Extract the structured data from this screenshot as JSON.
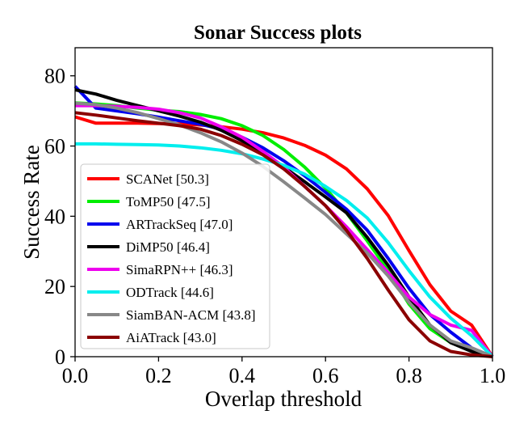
{
  "chart_data": {
    "type": "line",
    "title": "Sonar Success plots",
    "xlabel": "Overlap threshold",
    "ylabel": "Success Rate",
    "xlim": [
      0.0,
      1.0
    ],
    "ylim": [
      0,
      88
    ],
    "x_ticks": [
      0.0,
      0.2,
      0.4,
      0.6,
      0.8,
      1.0
    ],
    "x_tick_labels": [
      "0.0",
      "0.2",
      "0.4",
      "0.6",
      "0.8",
      "1.0"
    ],
    "y_ticks": [
      0,
      20,
      40,
      60,
      80
    ],
    "y_tick_labels": [
      "0",
      "20",
      "40",
      "60",
      "80"
    ],
    "grid": false,
    "legend_position": "lower-left",
    "x": [
      0.0,
      0.05,
      0.1,
      0.15,
      0.2,
      0.25,
      0.3,
      0.35,
      0.4,
      0.45,
      0.5,
      0.55,
      0.6,
      0.65,
      0.7,
      0.75,
      0.8,
      0.85,
      0.9,
      0.95,
      1.0
    ],
    "series": [
      {
        "name": "SCANet [50.3]",
        "color": "#ff0000",
        "values": [
          68.3,
          66.5,
          66.5,
          66.5,
          66.4,
          66.3,
          66.0,
          65.5,
          64.8,
          63.8,
          62.3,
          60.2,
          57.4,
          53.5,
          47.8,
          40.2,
          30.2,
          20.5,
          13.0,
          9.0,
          0.0
        ]
      },
      {
        "name": "ToMP50 [47.5]",
        "color": "#00ee00",
        "values": [
          72.3,
          72.0,
          71.5,
          70.8,
          70.2,
          69.8,
          69.0,
          67.8,
          65.8,
          63.0,
          59.0,
          54.0,
          48.0,
          41.0,
          33.0,
          24.5,
          15.0,
          8.0,
          4.0,
          2.0,
          0.0
        ]
      },
      {
        "name": "ARTrackSeq [47.0]",
        "color": "#0000ee",
        "values": [
          77.0,
          70.8,
          70.0,
          69.2,
          68.2,
          67.2,
          66.2,
          64.8,
          62.5,
          59.5,
          55.8,
          51.5,
          46.8,
          42.0,
          36.0,
          28.0,
          19.5,
          12.0,
          7.0,
          2.5,
          0.0
        ]
      },
      {
        "name": "DiMP50 [46.4]",
        "color": "#000000",
        "values": [
          76.0,
          74.8,
          73.0,
          71.5,
          70.0,
          68.5,
          66.8,
          64.5,
          61.5,
          58.0,
          54.0,
          49.8,
          45.5,
          41.0,
          34.0,
          26.0,
          17.0,
          9.0,
          4.0,
          1.5,
          0.0
        ]
      },
      {
        "name": "SimaRPN++ [46.3]",
        "color": "#ee00ee",
        "values": [
          71.5,
          71.5,
          71.3,
          71.0,
          70.5,
          69.5,
          68.0,
          65.5,
          62.5,
          58.5,
          54.0,
          48.5,
          43.0,
          37.0,
          30.5,
          24.0,
          17.0,
          12.0,
          9.0,
          7.5,
          0.0
        ]
      },
      {
        "name": "ODTrack [44.6]",
        "color": "#00eeee",
        "values": [
          60.6,
          60.6,
          60.5,
          60.4,
          60.3,
          60.0,
          59.5,
          58.8,
          57.8,
          56.3,
          54.5,
          52.0,
          48.5,
          44.5,
          39.5,
          32.5,
          24.5,
          17.0,
          11.0,
          6.0,
          0.0
        ]
      },
      {
        "name": "SiamBAN-ACM [43.8]",
        "color": "#888888",
        "values": [
          72.2,
          71.8,
          70.8,
          69.5,
          67.8,
          66.0,
          63.8,
          61.2,
          58.0,
          54.2,
          49.8,
          45.2,
          40.5,
          35.0,
          29.5,
          23.0,
          15.5,
          9.0,
          4.5,
          2.5,
          0.0
        ]
      },
      {
        "name": "AiATrack [43.0]",
        "color": "#8b0000",
        "values": [
          69.5,
          68.8,
          68.0,
          67.2,
          66.5,
          65.8,
          64.8,
          63.0,
          60.5,
          57.5,
          53.5,
          48.5,
          43.0,
          36.0,
          28.0,
          19.0,
          10.5,
          4.5,
          1.5,
          0.5,
          0.0
        ]
      }
    ]
  }
}
